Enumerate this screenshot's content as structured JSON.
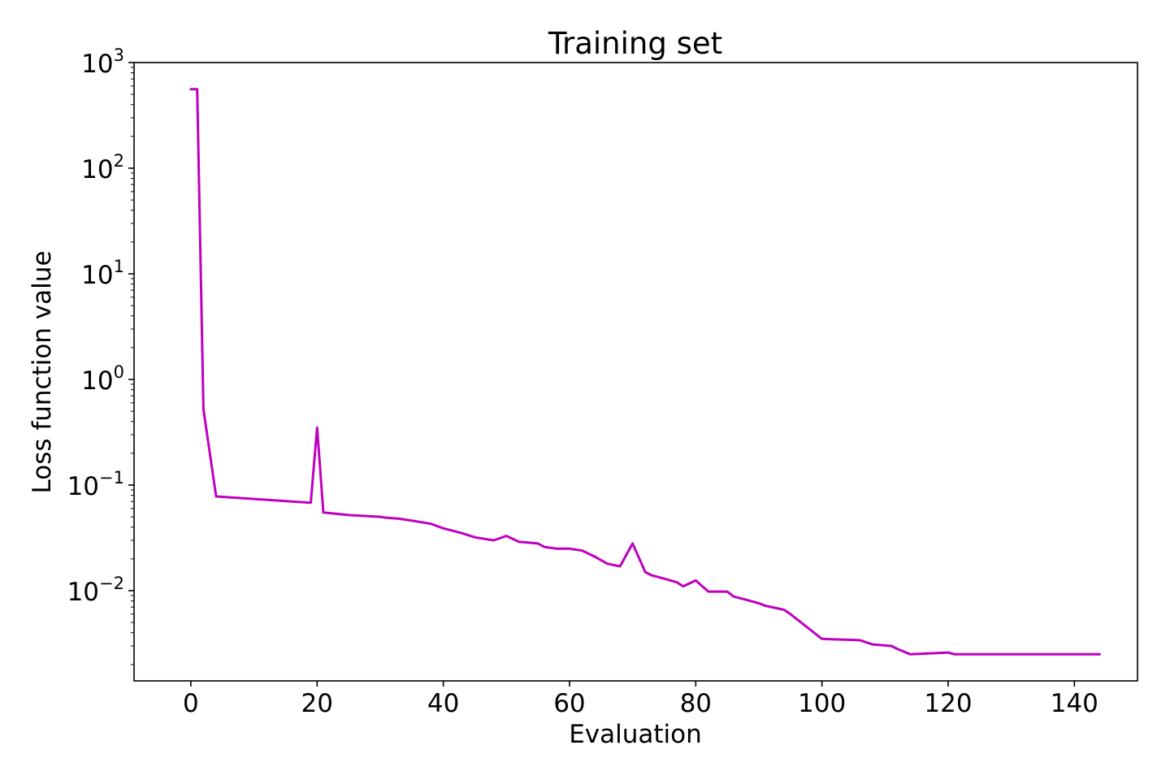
{
  "chart_data": {
    "type": "line",
    "title": "Training set",
    "xlabel": "Evaluation",
    "ylabel": "Loss function value",
    "yscale": "log",
    "xlim": [
      -9,
      150
    ],
    "ylim": [
      0.0014,
      1000
    ],
    "grid": false,
    "legend": "none",
    "xticks": [
      0,
      20,
      40,
      60,
      80,
      100,
      120,
      140
    ],
    "yticks": [
      {
        "value": 0.01,
        "base": "10",
        "exp": "−2"
      },
      {
        "value": 0.1,
        "base": "10",
        "exp": "−1"
      },
      {
        "value": 1,
        "base": "10",
        "exp": "0"
      },
      {
        "value": 10,
        "base": "10",
        "exp": "1"
      },
      {
        "value": 100,
        "base": "10",
        "exp": "2"
      },
      {
        "value": 1000,
        "base": "10",
        "exp": "3"
      }
    ],
    "series": [
      {
        "color": "#bf00bf",
        "x": [
          0,
          1,
          2,
          4,
          19,
          20,
          21,
          25,
          30,
          31,
          33,
          35,
          37,
          38,
          40,
          43,
          45,
          48,
          50,
          52,
          55,
          56,
          58,
          60,
          62,
          64,
          66,
          68,
          70,
          72,
          73,
          75,
          77,
          78,
          80,
          82,
          85,
          86,
          88,
          90,
          91,
          94,
          95,
          100,
          106,
          108,
          111,
          112,
          114,
          120,
          121,
          124,
          130,
          144
        ],
        "y": [
          560,
          560,
          0.52,
          0.078,
          0.068,
          0.35,
          0.055,
          0.052,
          0.05,
          0.049,
          0.048,
          0.046,
          0.044,
          0.043,
          0.039,
          0.035,
          0.032,
          0.03,
          0.033,
          0.029,
          0.028,
          0.026,
          0.025,
          0.025,
          0.024,
          0.021,
          0.018,
          0.017,
          0.028,
          0.015,
          0.014,
          0.013,
          0.012,
          0.011,
          0.0125,
          0.0098,
          0.0098,
          0.0088,
          0.0082,
          0.0076,
          0.0072,
          0.0066,
          0.006,
          0.0035,
          0.0034,
          0.0031,
          0.003,
          0.0028,
          0.0025,
          0.0026,
          0.0025,
          0.0025,
          0.0025,
          0.0025
        ]
      }
    ]
  }
}
